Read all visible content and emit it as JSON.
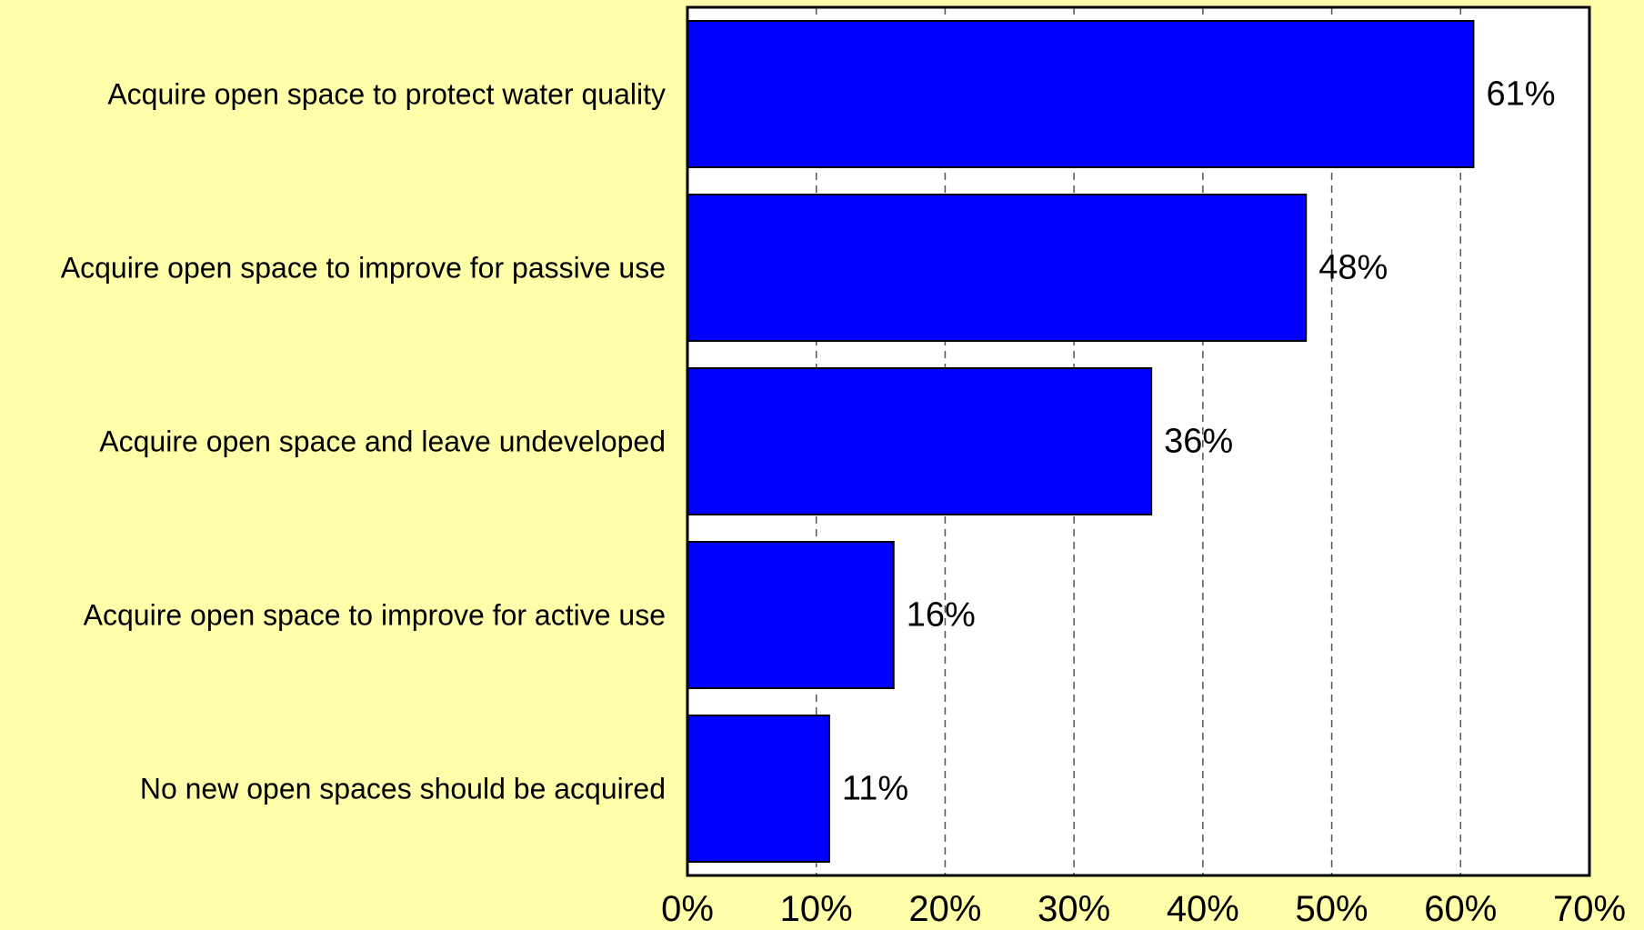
{
  "chart_data": {
    "type": "bar",
    "orientation": "horizontal",
    "title": "",
    "xlabel": "",
    "ylabel": "",
    "categories": [
      "Acquire open space to protect water quality",
      "Acquire open space to improve for passive use",
      "Acquire open space and leave undeveloped",
      "Acquire open space to improve for active use",
      "No new open spaces should be acquired"
    ],
    "values": [
      61,
      48,
      36,
      16,
      11
    ],
    "value_labels": [
      "61%",
      "48%",
      "36%",
      "16%",
      "11%"
    ],
    "xlim": [
      0,
      70
    ],
    "x_ticks": [
      0,
      10,
      20,
      30,
      40,
      50,
      60,
      70
    ],
    "x_tick_labels": [
      "0%",
      "10%",
      "20%",
      "30%",
      "40%",
      "50%",
      "60%",
      "70%"
    ],
    "grid": "vertical dashed",
    "legend": "none",
    "colors": {
      "background": "#ffffaa",
      "plot_background": "#ffffff",
      "bar_fill": "#0000ff",
      "bar_stroke": "#000000",
      "grid": "#555555"
    }
  }
}
